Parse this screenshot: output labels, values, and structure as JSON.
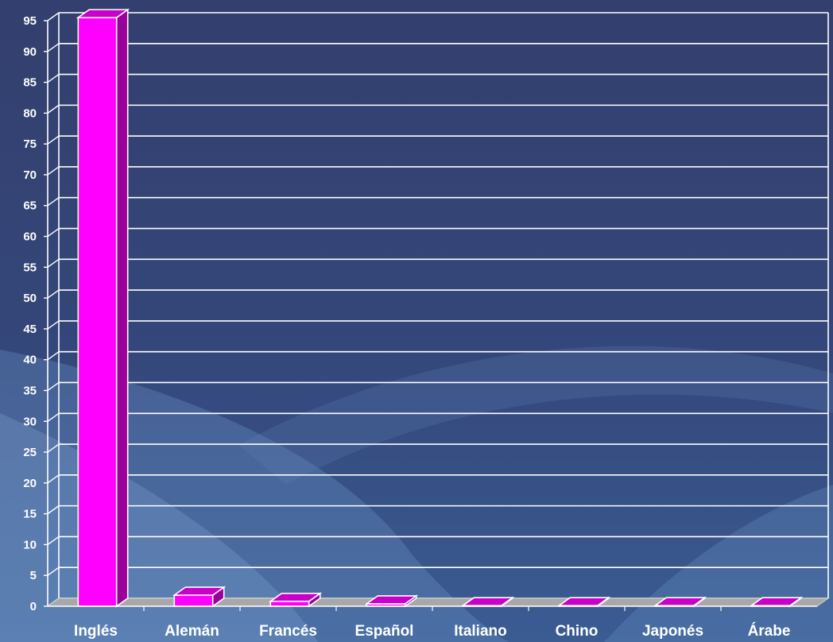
{
  "colors": {
    "background_top": "#333f6e",
    "background_bottom": "#3a5c93",
    "bar_front": "#ff00ff",
    "bar_top": "#c800c8",
    "bar_side": "#9a009a",
    "grid": "#ffffff",
    "floor": "#a8a8a8",
    "text": "#ffffff"
  },
  "chart_data": {
    "type": "bar",
    "style": "3d-column",
    "categories": [
      "Inglés",
      "Alemán",
      "Francés",
      "Español",
      "Italiano",
      "Chino",
      "Japonés",
      "Árabe"
    ],
    "values": [
      95.5,
      1.8,
      0.8,
      0.4,
      0.1,
      0.1,
      0.1,
      0.1
    ],
    "ylim": [
      0,
      95
    ],
    "yticks": [
      0,
      5,
      10,
      15,
      20,
      25,
      30,
      35,
      40,
      45,
      50,
      55,
      60,
      65,
      70,
      75,
      80,
      85,
      90,
      95
    ],
    "grid": true,
    "legend": "none",
    "title": "",
    "xlabel": "",
    "ylabel": ""
  }
}
